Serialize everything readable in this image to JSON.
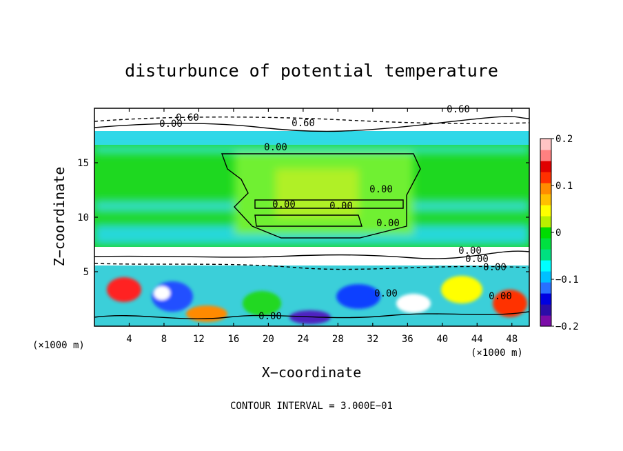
{
  "chart_data": {
    "type": "heatmap",
    "title": "disturbunce of potential temperature",
    "xlabel": "X−coordinate",
    "ylabel": "Z−coordinate",
    "x_unit": "(×1000 m)",
    "y_unit": "(×1000 m)",
    "xlim": [
      0,
      50
    ],
    "ylim": [
      0,
      20
    ],
    "x_ticks": [
      4,
      8,
      12,
      16,
      20,
      24,
      28,
      32,
      36,
      40,
      44,
      48
    ],
    "x_tick_labels": [
      "4",
      "8",
      "12",
      "16",
      "20",
      "24",
      "28",
      "32",
      "36",
      "40",
      "44",
      "48"
    ],
    "y_ticks": [
      5,
      10,
      15
    ],
    "y_tick_labels": [
      "5",
      "10",
      "15"
    ],
    "colorbar": {
      "range": [
        -0.2,
        0.2
      ],
      "ticks": [
        0.2,
        0.1,
        0,
        -0.1,
        -0.2
      ],
      "tick_labels": [
        "0.2",
        "0.1",
        "0",
        "−0.1",
        "−0.2"
      ],
      "colors": [
        "#7b0ca8",
        "#2b0ca8",
        "#0000e0",
        "#2870ff",
        "#00c0ff",
        "#00ffff",
        "#00e080",
        "#00e040",
        "#00dc00",
        "#b8f000",
        "#ffff00",
        "#ffc000",
        "#ff8c00",
        "#ff3000",
        "#e00000",
        "#ff8080",
        "#ffc4c4"
      ]
    },
    "contour_labels": [
      "0.60",
      "0.00",
      "0.60",
      "0.00",
      "0.00",
      "0.00",
      "0.00",
      "0.00",
      "0.00",
      "0.00",
      "0.00",
      "0.00",
      "0.00",
      "0.00",
      "0.60"
    ],
    "footer": "CONTOUR INTERVAL = 3.000E−01"
  }
}
